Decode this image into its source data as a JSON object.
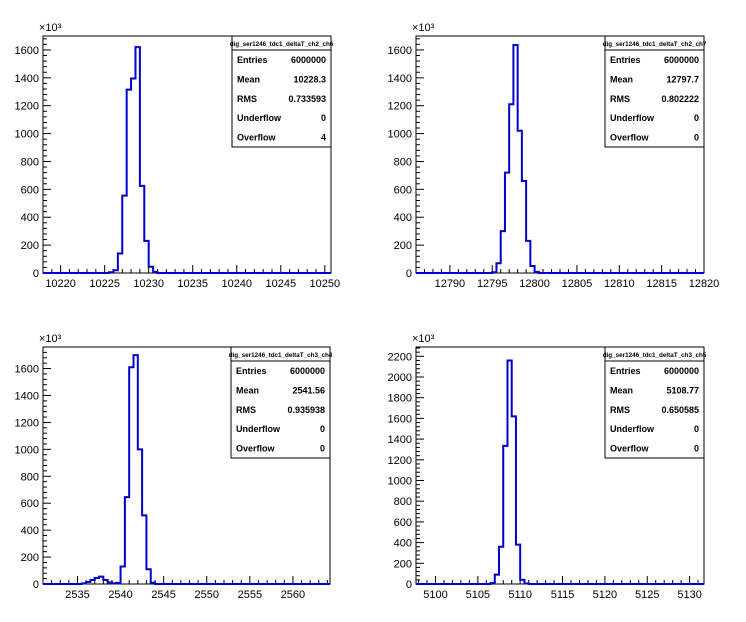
{
  "chart_data": [
    {
      "type": "histogram",
      "scale_label": "×10³",
      "xlim": [
        10218.0,
        10250.7
      ],
      "xticks": [
        10220,
        10225,
        10230,
        10235,
        10240,
        10245,
        10250
      ],
      "ylim": [
        0,
        1700
      ],
      "yticks": [
        0,
        200,
        400,
        600,
        800,
        1000,
        1200,
        1400,
        1600
      ],
      "bins": [
        {
          "x0": 10225.5,
          "x1": 10226.0,
          "y": 5
        },
        {
          "x0": 10226.0,
          "x1": 10226.5,
          "y": 20
        },
        {
          "x0": 10226.5,
          "x1": 10227.0,
          "y": 140
        },
        {
          "x0": 10227.0,
          "x1": 10227.5,
          "y": 555
        },
        {
          "x0": 10227.5,
          "x1": 10228.0,
          "y": 1315
        },
        {
          "x0": 10228.0,
          "x1": 10228.5,
          "y": 1395
        },
        {
          "x0": 10228.5,
          "x1": 10229.0,
          "y": 1620
        },
        {
          "x0": 10229.0,
          "x1": 10229.5,
          "y": 625
        },
        {
          "x0": 10229.5,
          "x1": 10230.0,
          "y": 230
        },
        {
          "x0": 10230.0,
          "x1": 10230.5,
          "y": 45
        },
        {
          "x0": 10230.5,
          "x1": 10231.0,
          "y": 8
        }
      ],
      "stats": {
        "title": "dig_ser1246_tdc1_deltaT_ch2_ch6",
        "rows": [
          {
            "label": "Entries",
            "value": "6000000"
          },
          {
            "label": "Mean",
            "value": "10228.3"
          },
          {
            "label": "RMS",
            "value": "0.733593"
          },
          {
            "label": "Underflow",
            "value": "0"
          },
          {
            "label": "Overflow",
            "value": "4"
          }
        ]
      }
    },
    {
      "type": "histogram",
      "scale_label": "×10³",
      "xlim": [
        12786.0,
        12820.0
      ],
      "xticks": [
        12790,
        12795,
        12800,
        12805,
        12810,
        12815,
        12820
      ],
      "ylim": [
        0,
        1700
      ],
      "yticks": [
        0,
        200,
        400,
        600,
        800,
        1000,
        1200,
        1400,
        1600
      ],
      "bins": [
        {
          "x0": 12795.0,
          "x1": 12795.5,
          "y": 5
        },
        {
          "x0": 12795.5,
          "x1": 12796.0,
          "y": 70
        },
        {
          "x0": 12796.0,
          "x1": 12796.5,
          "y": 300
        },
        {
          "x0": 12796.5,
          "x1": 12797.0,
          "y": 720
        },
        {
          "x0": 12797.0,
          "x1": 12797.5,
          "y": 1210
        },
        {
          "x0": 12797.5,
          "x1": 12798.0,
          "y": 1635
        },
        {
          "x0": 12798.0,
          "x1": 12798.5,
          "y": 1020
        },
        {
          "x0": 12798.5,
          "x1": 12799.0,
          "y": 660
        },
        {
          "x0": 12799.0,
          "x1": 12799.5,
          "y": 230
        },
        {
          "x0": 12799.5,
          "x1": 12800.0,
          "y": 50
        },
        {
          "x0": 12800.0,
          "x1": 12800.5,
          "y": 8
        }
      ],
      "stats": {
        "title": "dig_ser1246_tdc1_deltaT_ch2_ch7",
        "rows": [
          {
            "label": "Entries",
            "value": "6000000"
          },
          {
            "label": "Mean",
            "value": "12797.7"
          },
          {
            "label": "RMS",
            "value": "0.802222"
          },
          {
            "label": "Underflow",
            "value": "0"
          },
          {
            "label": "Overflow",
            "value": "0"
          }
        ]
      }
    },
    {
      "type": "histogram",
      "scale_label": "×10³",
      "xlim": [
        2531.0,
        2564.3
      ],
      "xticks": [
        2535,
        2540,
        2545,
        2550,
        2555,
        2560
      ],
      "ylim": [
        0,
        1760
      ],
      "yticks": [
        0,
        200,
        400,
        600,
        800,
        1000,
        1200,
        1400,
        1600
      ],
      "bins": [
        {
          "x0": 2535.5,
          "x1": 2536.0,
          "y": 5
        },
        {
          "x0": 2536.0,
          "x1": 2536.5,
          "y": 15
        },
        {
          "x0": 2536.5,
          "x1": 2537.0,
          "y": 30
        },
        {
          "x0": 2537.0,
          "x1": 2537.5,
          "y": 45
        },
        {
          "x0": 2537.5,
          "x1": 2538.0,
          "y": 55
        },
        {
          "x0": 2538.0,
          "x1": 2538.5,
          "y": 30
        },
        {
          "x0": 2538.5,
          "x1": 2539.0,
          "y": 12
        },
        {
          "x0": 2539.0,
          "x1": 2539.5,
          "y": 5
        },
        {
          "x0": 2539.5,
          "x1": 2540.0,
          "y": 8
        },
        {
          "x0": 2540.0,
          "x1": 2540.5,
          "y": 130
        },
        {
          "x0": 2540.5,
          "x1": 2541.0,
          "y": 645
        },
        {
          "x0": 2541.0,
          "x1": 2541.5,
          "y": 1610
        },
        {
          "x0": 2541.5,
          "x1": 2542.0,
          "y": 1700
        },
        {
          "x0": 2542.0,
          "x1": 2542.5,
          "y": 1000
        },
        {
          "x0": 2542.5,
          "x1": 2543.0,
          "y": 510
        },
        {
          "x0": 2543.0,
          "x1": 2543.5,
          "y": 110
        },
        {
          "x0": 2543.5,
          "x1": 2544.0,
          "y": 10
        }
      ],
      "stats": {
        "title": "dig_ser1246_tdc1_deltaT_ch3_ch4",
        "rows": [
          {
            "label": "Entries",
            "value": "6000000"
          },
          {
            "label": "Mean",
            "value": "2541.56"
          },
          {
            "label": "RMS",
            "value": "0.935938"
          },
          {
            "label": "Underflow",
            "value": "0"
          },
          {
            "label": "Overflow",
            "value": "0"
          }
        ]
      }
    },
    {
      "type": "histogram",
      "scale_label": "×10³",
      "xlim": [
        5097.7,
        5131.7
      ],
      "xticks": [
        5100,
        5105,
        5110,
        5115,
        5120,
        5125,
        5130
      ],
      "ylim": [
        0,
        2290
      ],
      "yticks": [
        0,
        200,
        400,
        600,
        800,
        1000,
        1200,
        1400,
        1600,
        1800,
        2000,
        2200
      ],
      "bins": [
        {
          "x0": 5106.5,
          "x1": 5107.0,
          "y": 10
        },
        {
          "x0": 5107.0,
          "x1": 5107.5,
          "y": 90
        },
        {
          "x0": 5107.5,
          "x1": 5108.0,
          "y": 360
        },
        {
          "x0": 5108.0,
          "x1": 5108.5,
          "y": 1335
        },
        {
          "x0": 5108.5,
          "x1": 5109.0,
          "y": 2160
        },
        {
          "x0": 5109.0,
          "x1": 5109.5,
          "y": 1620
        },
        {
          "x0": 5109.5,
          "x1": 5110.0,
          "y": 380
        },
        {
          "x0": 5110.0,
          "x1": 5110.5,
          "y": 40
        },
        {
          "x0": 5110.5,
          "x1": 5111.0,
          "y": 5
        }
      ],
      "stats": {
        "title": "dig_ser1246_tdc1_deltaT_ch3_ch5",
        "rows": [
          {
            "label": "Entries",
            "value": "6000000"
          },
          {
            "label": "Mean",
            "value": "5108.77"
          },
          {
            "label": "RMS",
            "value": "0.650585"
          },
          {
            "label": "Underflow",
            "value": "0"
          },
          {
            "label": "Overflow",
            "value": "0"
          }
        ]
      }
    }
  ],
  "colors": {
    "histogram_line": "#0000CC",
    "axis": "#000000",
    "background": "#FFFFFF"
  }
}
